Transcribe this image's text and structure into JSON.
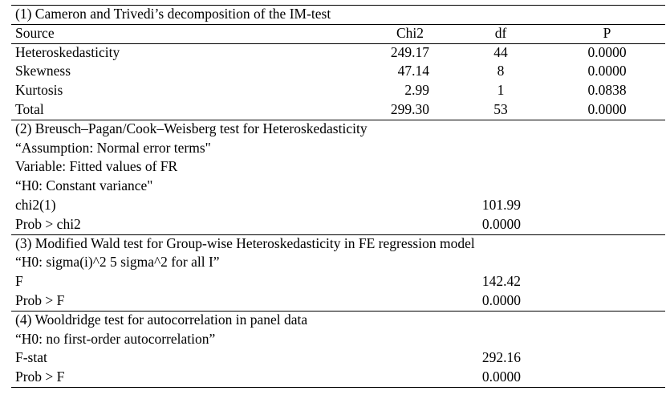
{
  "section1": {
    "title": "(1) Cameron and Trivedi’s decomposition of the IM-test",
    "headers": [
      "Source",
      "Chi2",
      "df",
      "P"
    ],
    "rows": [
      {
        "source": "Heteroskedasticity",
        "chi2": "249.17",
        "df": "44",
        "p": "0.0000"
      },
      {
        "source": "Skewness",
        "chi2": "47.14",
        "df": "8",
        "p": "0.0000"
      },
      {
        "source": "Kurtosis",
        "chi2": "2.99",
        "df": "1",
        "p": "0.0838"
      },
      {
        "source": "Total",
        "chi2": "299.30",
        "df": "53",
        "p": "0.0000"
      }
    ]
  },
  "section2": {
    "title": "(2) Breusch–Pagan/Cook–Weisberg test for Heteroskedasticity",
    "lines": [
      "“Assumption: Normal error terms\"",
      "Variable: Fitted values of FR",
      "“H0: Constant variance\""
    ],
    "stats": [
      {
        "label": "chi2(1)",
        "value": "101.99"
      },
      {
        "label": "Prob > chi2",
        "value": "0.0000"
      }
    ]
  },
  "section3": {
    "title": "(3) Modified Wald test for Group-wise Heteroskedasticity in FE regression model",
    "lines": [
      "“H0: sigma(i)^2 5 sigma^2 for all I”"
    ],
    "stats": [
      {
        "label": "F",
        "value": "142.42"
      },
      {
        "label": "Prob > F",
        "value": "0.0000"
      }
    ]
  },
  "section4": {
    "title": "(4) Wooldridge test for autocorrelation in panel data",
    "lines": [
      "“H0: no first-order autocorrelation”"
    ],
    "stats": [
      {
        "label": "F-stat",
        "value": "292.16"
      },
      {
        "label": "Prob > F",
        "value": "0.0000"
      }
    ]
  }
}
